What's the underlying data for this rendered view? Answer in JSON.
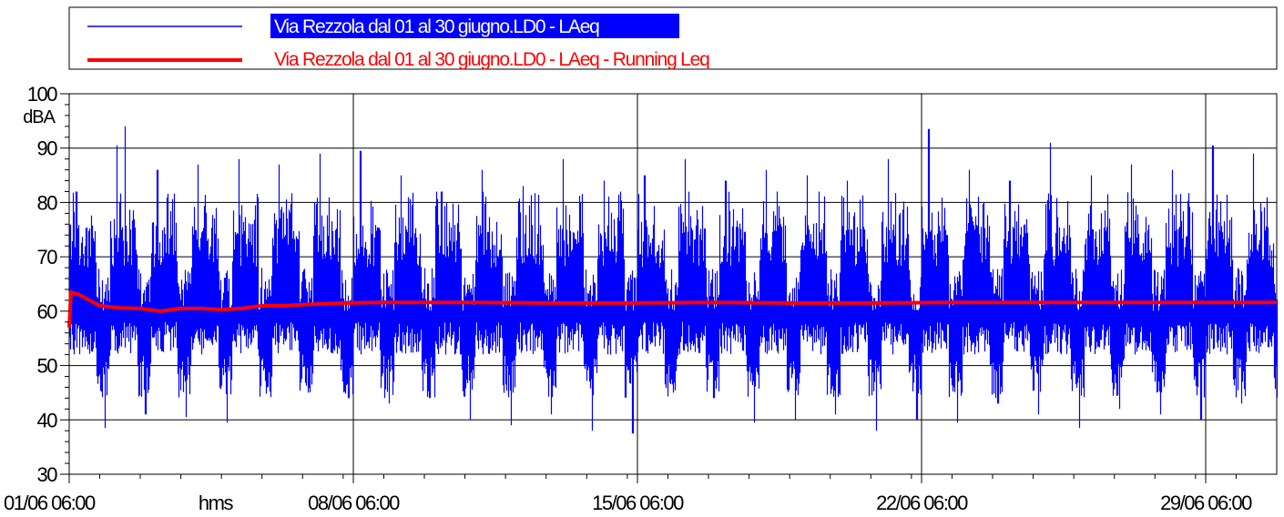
{
  "chart_data": {
    "type": "line",
    "title": "",
    "xlabel": "hms",
    "ylabel": "dBA",
    "ylim": [
      30,
      100
    ],
    "yticks": [
      30,
      40,
      50,
      60,
      70,
      80,
      90,
      100
    ],
    "xlim": [
      "01/06 06:00",
      "01/07 00:00"
    ],
    "xticks": [
      "01/06 06:00",
      "08/06 06:00",
      "15/06 06:00",
      "22/06 06:00",
      "29/06 06:00"
    ],
    "grid": true,
    "legend_position": "top",
    "series": [
      {
        "name": "Via Rezzola dal 01 al 30 giugno.LD0 - LAeq",
        "color": "#0000ff",
        "style": "thin line, highlighted legend entry",
        "summary": {
          "typical_range": [
            50,
            75
          ],
          "max": 94,
          "min": 37.5,
          "pattern": "daily cycle: lows around 38-46 dBA at night, peaks 80-94 dBA during day"
        },
        "daily_peaks": [
          {
            "x": "01/06",
            "y": 82
          },
          {
            "x": "02/06",
            "y": 90.5
          },
          {
            "x": "02/06",
            "y": 94
          },
          {
            "x": "03/06",
            "y": 86
          },
          {
            "x": "04/06",
            "y": 87
          },
          {
            "x": "05/06",
            "y": 88
          },
          {
            "x": "06/06",
            "y": 87
          },
          {
            "x": "07/06",
            "y": 89
          },
          {
            "x": "08/06",
            "y": 89.5
          },
          {
            "x": "09/06",
            "y": 85
          },
          {
            "x": "10/06",
            "y": 82
          },
          {
            "x": "11/06",
            "y": 86
          },
          {
            "x": "12/06",
            "y": 83
          },
          {
            "x": "13/06",
            "y": 88
          },
          {
            "x": "14/06",
            "y": 84
          },
          {
            "x": "15/06",
            "y": 85
          },
          {
            "x": "16/06",
            "y": 88
          },
          {
            "x": "17/06",
            "y": 84
          },
          {
            "x": "18/06",
            "y": 86
          },
          {
            "x": "19/06",
            "y": 85
          },
          {
            "x": "20/06",
            "y": 84
          },
          {
            "x": "21/06",
            "y": 88
          },
          {
            "x": "22/06",
            "y": 93.5
          },
          {
            "x": "23/06",
            "y": 86
          },
          {
            "x": "24/06",
            "y": 84
          },
          {
            "x": "25/06",
            "y": 91
          },
          {
            "x": "26/06",
            "y": 85
          },
          {
            "x": "27/06",
            "y": 87
          },
          {
            "x": "28/06",
            "y": 86
          },
          {
            "x": "29/06",
            "y": 90.5
          },
          {
            "x": "30/06",
            "y": 89
          }
        ],
        "nightly_lows": [
          {
            "x": "01/06",
            "y": 46
          },
          {
            "x": "02/06",
            "y": 38.5
          },
          {
            "x": "03/06",
            "y": 41
          },
          {
            "x": "04/06",
            "y": 40.5
          },
          {
            "x": "05/06",
            "y": 39.5
          },
          {
            "x": "06/06",
            "y": 46
          },
          {
            "x": "07/06",
            "y": 45
          },
          {
            "x": "08/06",
            "y": 44
          },
          {
            "x": "09/06",
            "y": 43
          },
          {
            "x": "10/06",
            "y": 44
          },
          {
            "x": "11/06",
            "y": 40
          },
          {
            "x": "12/06",
            "y": 39
          },
          {
            "x": "13/06",
            "y": 41
          },
          {
            "x": "14/06",
            "y": 38
          },
          {
            "x": "15/06",
            "y": 37.5
          },
          {
            "x": "16/06",
            "y": 45
          },
          {
            "x": "17/06",
            "y": 44
          },
          {
            "x": "18/06",
            "y": 39.5
          },
          {
            "x": "19/06",
            "y": 40
          },
          {
            "x": "20/06",
            "y": 41
          },
          {
            "x": "21/06",
            "y": 38
          },
          {
            "x": "22/06",
            "y": 40
          },
          {
            "x": "23/06",
            "y": 39.5
          },
          {
            "x": "24/06",
            "y": 43
          },
          {
            "x": "25/06",
            "y": 41
          },
          {
            "x": "26/06",
            "y": 38.5
          },
          {
            "x": "27/06",
            "y": 42
          },
          {
            "x": "28/06",
            "y": 41
          },
          {
            "x": "29/06",
            "y": 40
          },
          {
            "x": "30/06",
            "y": 43
          }
        ]
      },
      {
        "name": "Via Rezzola dal 01 al 30 giugno.LD0 - LAeq - Running Leq",
        "color": "#ff0000",
        "style": "thick line",
        "points": [
          {
            "x": "01/06 06:00",
            "y": 57
          },
          {
            "x": "01/06 07:00",
            "y": 63.5
          },
          {
            "x": "01/06 12:00",
            "y": 63
          },
          {
            "x": "02/06 00:00",
            "y": 61
          },
          {
            "x": "02/06 12:00",
            "y": 60.6
          },
          {
            "x": "03/06 00:00",
            "y": 60.5
          },
          {
            "x": "03/06 12:00",
            "y": 60
          },
          {
            "x": "04/06 00:00",
            "y": 60.5
          },
          {
            "x": "04/06 12:00",
            "y": 60.5
          },
          {
            "x": "05/06 00:00",
            "y": 60.3
          },
          {
            "x": "05/06 12:00",
            "y": 60.5
          },
          {
            "x": "06/06 00:00",
            "y": 61
          },
          {
            "x": "06/06 12:00",
            "y": 61
          },
          {
            "x": "07/06 00:00",
            "y": 61.2
          },
          {
            "x": "08/06 00:00",
            "y": 61.5
          },
          {
            "x": "09/06 00:00",
            "y": 61.6
          },
          {
            "x": "11/06 00:00",
            "y": 61.6
          },
          {
            "x": "13/06 00:00",
            "y": 61.5
          },
          {
            "x": "15/06 00:00",
            "y": 61.5
          },
          {
            "x": "17/06 00:00",
            "y": 61.6
          },
          {
            "x": "19/06 00:00",
            "y": 61.5
          },
          {
            "x": "21/06 00:00",
            "y": 61.5
          },
          {
            "x": "23/06 00:00",
            "y": 61.6
          },
          {
            "x": "25/06 00:00",
            "y": 61.6
          },
          {
            "x": "27/06 00:00",
            "y": 61.6
          },
          {
            "x": "29/06 00:00",
            "y": 61.6
          },
          {
            "x": "01/07 00:00",
            "y": 61.6
          }
        ]
      }
    ]
  }
}
